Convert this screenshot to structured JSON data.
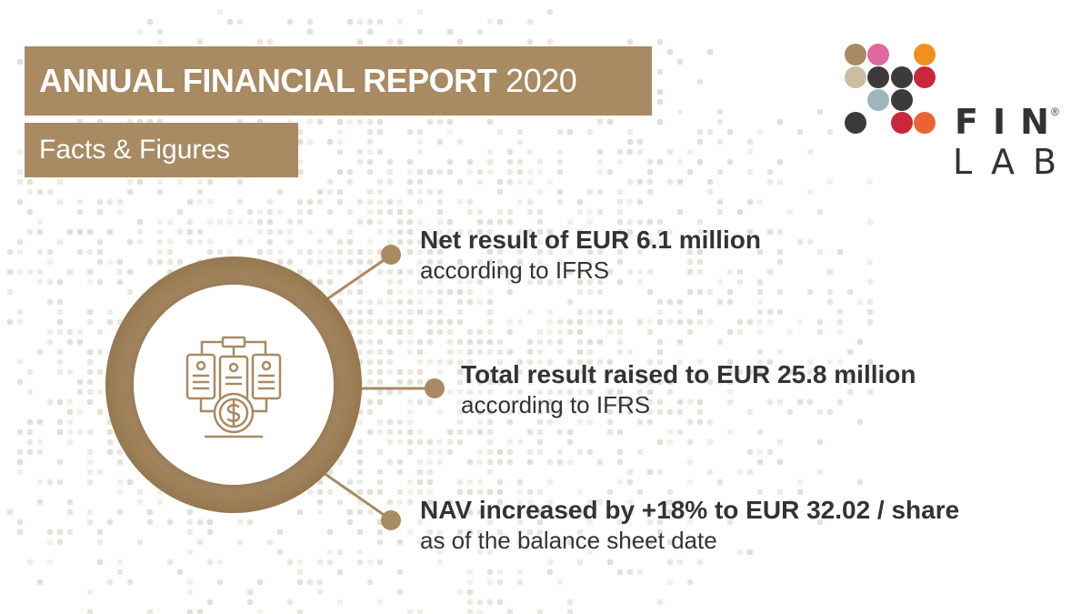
{
  "header": {
    "title_bold": "ANNUAL FINANCIAL REPORT",
    "title_year": "2020",
    "subtitle": "Facts & Figures"
  },
  "logo": {
    "line1": "FIN",
    "line2": "LAB",
    "registered": "®"
  },
  "facts": [
    {
      "headline": "Net result of EUR 6.1 million",
      "detail": "according to IFRS"
    },
    {
      "headline": "Total result raised to EUR 25.8 million",
      "detail": "according to IFRS"
    },
    {
      "headline": "NAV increased by +18% to EUR 32.02 / share",
      "detail": "as of the balance sheet date"
    }
  ],
  "icons": {
    "center": "servers-with-dollar-coin-icon"
  },
  "colors": {
    "accent": "#a88a63",
    "text": "#333333",
    "logo_dots": [
      "#a88a63",
      "#e0679f",
      "#f1901f",
      "#cdbda0",
      "#3d3a3b",
      "#3d3a3b",
      "#c9273a",
      "#9fb6bf",
      "#3d3a3b",
      "#3d3a3b",
      "#c9273a",
      "#ea6331"
    ]
  }
}
